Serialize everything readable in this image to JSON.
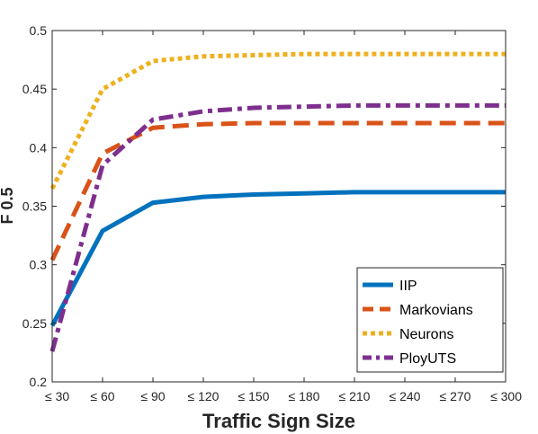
{
  "chart_data": {
    "type": "line",
    "title": "",
    "xlabel": "Traffic Sign Size",
    "ylabel": "F 0.5",
    "categories": [
      "≤ 30",
      "≤ 60",
      "≤ 90",
      "≤ 120",
      "≤ 150",
      "≤ 180",
      "≤ 210",
      "≤ 240",
      "≤ 270",
      "≤ 300"
    ],
    "ylim": [
      0.2,
      0.5
    ],
    "yticks": [
      "0.2",
      "0.25",
      "0.3",
      "0.35",
      "0.4",
      "0.45",
      "0.5"
    ],
    "grid": false,
    "legend_position": "bottom-right",
    "series": [
      {
        "name": "IIP",
        "color": "#0072BD",
        "style": "solid",
        "values": [
          0.248,
          0.329,
          0.353,
          0.358,
          0.36,
          0.361,
          0.362,
          0.362,
          0.362,
          0.362
        ]
      },
      {
        "name": "Markovians",
        "color": "#D95319",
        "style": "dashed",
        "values": [
          0.304,
          0.395,
          0.417,
          0.42,
          0.421,
          0.421,
          0.421,
          0.421,
          0.421,
          0.421
        ]
      },
      {
        "name": "Neurons",
        "color": "#EDB120",
        "style": "dotted",
        "values": [
          0.365,
          0.45,
          0.474,
          0.478,
          0.479,
          0.48,
          0.48,
          0.48,
          0.48,
          0.48
        ]
      },
      {
        "name": "PloyUTS",
        "color": "#7E2F8E",
        "style": "dashdot",
        "values": [
          0.226,
          0.385,
          0.424,
          0.431,
          0.434,
          0.435,
          0.436,
          0.436,
          0.436,
          0.436
        ]
      }
    ]
  }
}
